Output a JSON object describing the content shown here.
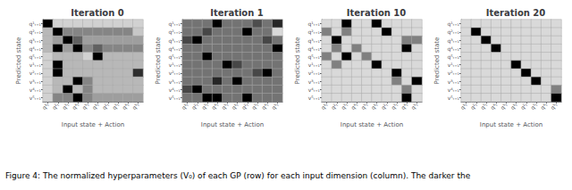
{
  "chart_data": [
    {
      "type": "heatmap",
      "title": "Iteration 0",
      "xlabel": "Input state + Action",
      "ylabel": "Predicted state",
      "x_categories": [
        "q¹ₜ",
        "q²ₜ",
        "q³ₜ",
        "q⁴ₜ",
        "q⁵ₜ",
        "q¹ₜ",
        "q²ₜ",
        "q³ₜ",
        "q⁴ₜ",
        "q⁵ₜ"
      ],
      "y_categories": [
        "q¹ₜ₊₁",
        "q²ₜ₊₁",
        "q³ₜ₊₁",
        "q⁴ₜ₊₁",
        "q⁵ₜ₊₁",
        "v¹ₜ₊₁",
        "v²ₜ₊₁",
        "v³ₜ₊₁",
        "v⁴ₜ₊₁",
        "v⁵ₜ₊₁"
      ],
      "cells": [
        [
          0.0,
          0.82,
          0.82,
          0.82,
          0.82,
          0.82,
          0.82,
          0.82,
          0.82,
          0.82
        ],
        [
          0.72,
          0.0,
          0.52,
          0.52,
          0.52,
          0.52,
          0.52,
          0.52,
          0.52,
          0.78
        ],
        [
          0.72,
          0.62,
          0.0,
          0.38,
          0.62,
          0.62,
          0.62,
          0.62,
          0.62,
          0.62
        ],
        [
          0.72,
          0.0,
          0.62,
          0.0,
          0.52,
          0.38,
          0.52,
          0.52,
          0.52,
          0.52
        ],
        [
          0.82,
          0.72,
          0.72,
          0.72,
          0.82,
          0.0,
          0.72,
          0.72,
          0.72,
          0.72
        ],
        [
          0.82,
          0.0,
          0.72,
          0.72,
          0.72,
          0.72,
          0.72,
          0.72,
          0.72,
          0.72
        ],
        [
          0.82,
          0.0,
          0.72,
          0.72,
          0.72,
          0.72,
          0.72,
          0.72,
          0.72,
          0.18
        ],
        [
          0.82,
          0.72,
          0.72,
          0.0,
          0.52,
          0.72,
          0.72,
          0.72,
          0.72,
          0.72
        ],
        [
          0.82,
          0.72,
          0.0,
          0.72,
          0.52,
          0.72,
          0.72,
          0.72,
          0.72,
          0.72
        ],
        [
          0.82,
          0.52,
          0.52,
          0.0,
          0.52,
          0.62,
          0.62,
          0.62,
          0.62,
          0.62
        ]
      ],
      "color_range": [
        0,
        1
      ],
      "colors": [
        "#000000",
        "#ffffff"
      ],
      "grid": true
    },
    {
      "type": "heatmap",
      "title": "Iteration 1",
      "xlabel": "Input state + Action",
      "ylabel": "Predicted state",
      "x_categories": [
        "q¹ₜ",
        "q²ₜ",
        "q³ₜ",
        "q⁴ₜ",
        "q⁵ₜ",
        "q¹ₜ",
        "q²ₜ",
        "q³ₜ",
        "q⁴ₜ",
        "q⁵ₜ"
      ],
      "y_categories": [
        "q¹ₜ₊₁",
        "q²ₜ₊₁",
        "q³ₜ₊₁",
        "q⁴ₜ₊₁",
        "q⁵ₜ₊₁",
        "v¹ₜ₊₁",
        "v²ₜ₊₁",
        "v³ₜ₊₁",
        "v⁴ₜ₊₁",
        "v⁵ₜ₊₁"
      ],
      "cells": [
        [
          0.45,
          0.45,
          0.45,
          0.0,
          0.45,
          0.45,
          0.45,
          0.3,
          0.45,
          0.15
        ],
        [
          0.45,
          0.45,
          0.28,
          0.45,
          0.45,
          0.45,
          0.0,
          0.45,
          0.45,
          0.85
        ],
        [
          0.28,
          0.0,
          0.45,
          0.45,
          0.45,
          0.45,
          0.45,
          0.45,
          0.28,
          0.45
        ],
        [
          0.45,
          0.45,
          0.45,
          0.45,
          0.45,
          0.45,
          0.45,
          0.45,
          0.45,
          0.0
        ],
        [
          0.45,
          0.45,
          0.0,
          0.45,
          0.45,
          0.45,
          0.45,
          0.45,
          0.45,
          0.45
        ],
        [
          0.45,
          0.45,
          0.45,
          0.45,
          0.0,
          0.28,
          0.45,
          0.45,
          0.45,
          0.45
        ],
        [
          0.45,
          0.45,
          0.45,
          0.45,
          0.45,
          0.45,
          0.45,
          0.28,
          0.0,
          0.45
        ],
        [
          0.45,
          0.45,
          0.45,
          0.15,
          0.45,
          0.0,
          0.45,
          0.45,
          0.45,
          0.45
        ],
        [
          0.28,
          0.0,
          0.45,
          0.45,
          0.45,
          0.45,
          0.45,
          0.45,
          0.45,
          0.45
        ],
        [
          0.45,
          0.45,
          0.0,
          0.0,
          0.45,
          0.45,
          0.0,
          0.45,
          0.45,
          0.45
        ]
      ],
      "color_range": [
        0,
        1
      ],
      "colors": [
        "#000000",
        "#ffffff"
      ],
      "grid": true
    },
    {
      "type": "heatmap",
      "title": "Iteration 10",
      "xlabel": "Input state + Action",
      "ylabel": "Predicted state",
      "x_categories": [
        "q¹ₜ",
        "q²ₜ",
        "q³ₜ",
        "q⁴ₜ",
        "q⁵ₜ",
        "q¹ₜ",
        "q²ₜ",
        "q³ₜ",
        "q⁴ₜ",
        "q⁵ₜ"
      ],
      "y_categories": [
        "q¹ₜ₊₁",
        "q²ₜ₊₁",
        "q³ₜ₊₁",
        "q⁴ₜ₊₁",
        "q⁵ₜ₊₁",
        "v¹ₜ₊₁",
        "v²ₜ₊₁",
        "v³ₜ₊₁",
        "v⁴ₜ₊₁",
        "v⁵ₜ₊₁"
      ],
      "cells": [
        [
          0.85,
          0.85,
          0.0,
          0.85,
          0.85,
          0.0,
          0.85,
          0.85,
          0.85,
          0.85
        ],
        [
          0.5,
          0.85,
          0.5,
          0.85,
          0.85,
          0.85,
          0.0,
          0.85,
          0.85,
          0.85
        ],
        [
          0.85,
          0.0,
          0.85,
          0.85,
          0.85,
          0.85,
          0.85,
          0.85,
          0.5,
          0.5
        ],
        [
          0.85,
          0.5,
          0.85,
          0.5,
          0.85,
          0.85,
          0.85,
          0.85,
          0.0,
          0.85
        ],
        [
          0.5,
          0.85,
          0.0,
          0.85,
          0.5,
          0.85,
          0.85,
          0.85,
          0.85,
          0.85
        ],
        [
          0.85,
          0.5,
          0.85,
          0.85,
          0.85,
          0.0,
          0.85,
          0.85,
          0.85,
          0.85
        ],
        [
          0.85,
          0.85,
          0.85,
          0.85,
          0.85,
          0.85,
          0.85,
          0.0,
          0.85,
          0.85
        ],
        [
          0.85,
          0.85,
          0.85,
          0.85,
          0.85,
          0.85,
          0.85,
          0.5,
          0.85,
          0.0
        ],
        [
          0.85,
          0.85,
          0.85,
          0.85,
          0.85,
          0.85,
          0.85,
          0.85,
          0.5,
          0.85
        ],
        [
          0.85,
          0.85,
          0.85,
          0.85,
          0.85,
          0.85,
          0.85,
          0.85,
          0.0,
          0.85
        ]
      ],
      "color_range": [
        0,
        1
      ],
      "colors": [
        "#000000",
        "#ffffff"
      ],
      "grid": true
    },
    {
      "type": "heatmap",
      "title": "Iteration 20",
      "xlabel": "Input state + Action",
      "ylabel": "Predicted state",
      "x_categories": [
        "q¹ₜ",
        "q²ₜ",
        "q³ₜ",
        "q⁴ₜ",
        "q⁵ₜ",
        "q¹ₜ",
        "q²ₜ",
        "q³ₜ",
        "q⁴ₜ",
        "q⁵ₜ"
      ],
      "y_categories": [
        "q¹ₜ₊₁",
        "q²ₜ₊₁",
        "q³ₜ₊₁",
        "q⁴ₜ₊₁",
        "q⁵ₜ₊₁",
        "v¹ₜ₊₁",
        "v²ₜ₊₁",
        "v³ₜ₊₁",
        "v⁴ₜ₊₁",
        "v⁵ₜ₊₁"
      ],
      "cells": [
        [
          0.85,
          0.85,
          0.85,
          0.85,
          0.85,
          0.85,
          0.85,
          0.85,
          0.85,
          0.85
        ],
        [
          0.85,
          0.0,
          0.85,
          0.85,
          0.85,
          0.85,
          0.85,
          0.85,
          0.85,
          0.85
        ],
        [
          0.85,
          0.85,
          0.0,
          0.85,
          0.85,
          0.85,
          0.85,
          0.85,
          0.85,
          0.85
        ],
        [
          0.85,
          0.85,
          0.85,
          0.0,
          0.85,
          0.85,
          0.85,
          0.85,
          0.85,
          0.85
        ],
        [
          0.85,
          0.85,
          0.85,
          0.85,
          0.85,
          0.85,
          0.85,
          0.85,
          0.85,
          0.85
        ],
        [
          0.85,
          0.85,
          0.85,
          0.85,
          0.85,
          0.0,
          0.85,
          0.85,
          0.85,
          0.85
        ],
        [
          0.85,
          0.85,
          0.85,
          0.85,
          0.85,
          0.85,
          0.0,
          0.85,
          0.85,
          0.85
        ],
        [
          0.85,
          0.85,
          0.85,
          0.85,
          0.85,
          0.85,
          0.85,
          0.0,
          0.85,
          0.85
        ],
        [
          0.85,
          0.85,
          0.85,
          0.85,
          0.85,
          0.85,
          0.85,
          0.85,
          0.85,
          0.5
        ],
        [
          0.85,
          0.85,
          0.85,
          0.85,
          0.85,
          0.85,
          0.85,
          0.85,
          0.85,
          0.0
        ]
      ],
      "color_range": [
        0,
        1
      ],
      "colors": [
        "#000000",
        "#ffffff"
      ],
      "grid": true
    }
  ],
  "caption": "Figure 4: The normalized hyperparameters (V₀) of each GP (row) for each input dimension (column). The darker the"
}
